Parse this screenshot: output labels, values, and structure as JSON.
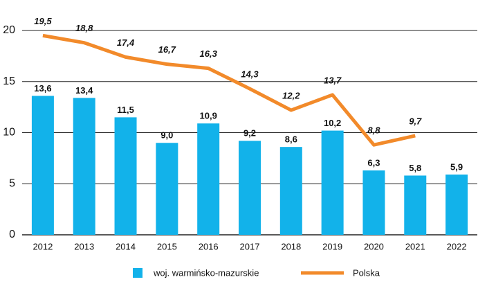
{
  "chart_data": {
    "type": "bar",
    "categories": [
      "2012",
      "2013",
      "2014",
      "2015",
      "2016",
      "2017",
      "2018",
      "2019",
      "2020",
      "2021",
      "2022"
    ],
    "series": [
      {
        "name": "woj. warmińsko-mazurskie",
        "type": "bar",
        "color": "#12b2ea",
        "values": [
          13.6,
          13.4,
          11.5,
          9.0,
          10.9,
          9.2,
          8.6,
          10.2,
          6.3,
          5.8,
          5.9
        ],
        "value_labels": [
          "13,6",
          "13,4",
          "11,5",
          "9,0",
          "10,9",
          "9,2",
          "8,6",
          "10,2",
          "6,3",
          "5,8",
          "5,9"
        ]
      },
      {
        "name": "Polska",
        "type": "line",
        "color": "#f28a2a",
        "values": [
          19.5,
          18.8,
          17.4,
          16.7,
          16.3,
          14.3,
          12.2,
          13.7,
          8.8,
          9.7,
          null
        ],
        "value_labels": [
          "19,5",
          "18,8",
          "17,4",
          "16,7",
          "16,3",
          "14,3",
          "12,2",
          "13,7",
          "8,8",
          "9,7",
          null
        ]
      }
    ],
    "ylim": [
      0,
      20
    ],
    "yticks": [
      0,
      5,
      10,
      15,
      20
    ],
    "grid": true,
    "legend": "bottom"
  }
}
